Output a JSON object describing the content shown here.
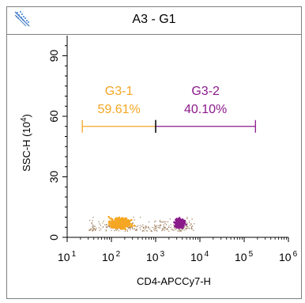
{
  "chart_data": {
    "type": "scatter",
    "title": "A3 - G1",
    "xlabel": "CD4-APCCy7-H",
    "ylabel": "SSC-H (10",
    "ylabel_exp": "4",
    "ylabel_close": ")",
    "x_scale": "log",
    "xlim": [
      10,
      1000000
    ],
    "ylim": [
      0,
      100
    ],
    "x_ticks": [
      {
        "base": "10",
        "exp": "1",
        "value": 10
      },
      {
        "base": "10",
        "exp": "2",
        "value": 100
      },
      {
        "base": "10",
        "exp": "3",
        "value": 1000
      },
      {
        "base": "10",
        "exp": "4",
        "value": 10000
      },
      {
        "base": "10",
        "exp": "5",
        "value": 100000
      },
      {
        "base": "10",
        "exp": "6",
        "value": 1000000
      }
    ],
    "y_ticks": [
      "0",
      "30",
      "60",
      "90"
    ],
    "y_tick_values": [
      0,
      30,
      60,
      90
    ],
    "gates": [
      {
        "name": "G3-1",
        "percent": "59.61%",
        "color": "#f5a623",
        "x_start": 22,
        "x_end": 1000,
        "y": 55
      },
      {
        "name": "G3-2",
        "percent": "40.10%",
        "color": "#8b1a8b",
        "x_start": 1000,
        "x_end": 180000,
        "y": 55
      }
    ],
    "populations": [
      {
        "name": "G3-1",
        "color": "#f5a623",
        "x_center": 160,
        "y_center": 7,
        "share": 0.5961
      },
      {
        "name": "G3-2",
        "color": "#8b1a8b",
        "x_center": 3600,
        "y_center": 7,
        "share": 0.401
      }
    ],
    "background_color": "#a08060"
  }
}
